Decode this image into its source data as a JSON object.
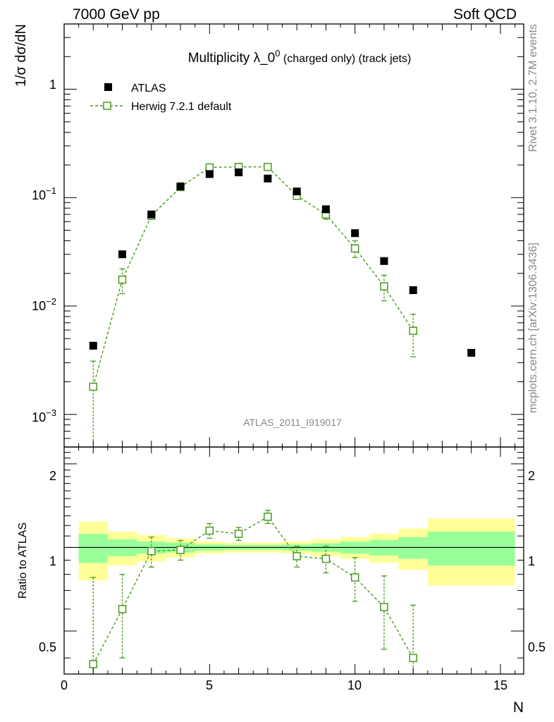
{
  "header": {
    "left": "7000 GeV pp",
    "right": "Soft QCD"
  },
  "side": {
    "rivet": "Rivet 3.1.10,  2.7M events",
    "mcplots": "mcplots.cern.ch [arXiv:1306.3436]"
  },
  "watermark": "ATLAS_2011_I919017",
  "chart_data": {
    "type": "scatter",
    "title_main": "Multiplicity λ_0",
    "title_sup": "0",
    "title_rest": " (charged only) (track jets)",
    "xlabel": "N",
    "ylabel": "1/σ dσ/dN",
    "ratio_ylabel": "Ratio to ATLAS",
    "xlim": [
      0,
      15.8
    ],
    "ylim": [
      0.0005,
      4
    ],
    "yscale": "log",
    "ratio_ylim": [
      0.35,
      2.3
    ],
    "x_ticks": [
      "0",
      "5",
      "10",
      "15"
    ],
    "y_ticks": [
      {
        "base": "10",
        "exp": "−3"
      },
      {
        "base": "10",
        "exp": "−2"
      },
      {
        "base": "10",
        "exp": "−1"
      },
      {
        "base": "1",
        "exp": ""
      }
    ],
    "ratio_ticks": [
      "0.5",
      "1",
      "2"
    ],
    "legend": [
      "ATLAS",
      "Herwig 7.2.1 default"
    ],
    "series": [
      {
        "name": "ATLAS",
        "color": "#000000",
        "marker": "filled-square",
        "x": [
          1,
          2,
          3,
          4,
          5,
          6,
          7,
          8,
          9,
          10,
          11,
          12,
          14
        ],
        "y": [
          0.0043,
          0.03,
          0.07,
          0.127,
          0.165,
          0.171,
          0.15,
          0.114,
          0.078,
          0.047,
          0.026,
          0.014,
          0.0037
        ]
      },
      {
        "name": "Herwig 7.2.1 default",
        "color": "#4a9a1e",
        "marker": "open-square",
        "x": [
          1,
          2,
          3,
          4,
          5,
          6,
          7,
          8,
          9,
          10,
          11,
          12
        ],
        "y": [
          0.0018,
          0.0175,
          0.068,
          0.125,
          0.19,
          0.192,
          0.192,
          0.104,
          0.07,
          0.034,
          0.0152,
          0.0059
        ],
        "yerr": [
          0.0013,
          0.0045,
          0.005,
          0.006,
          0.006,
          0.006,
          0.006,
          0.006,
          0.007,
          0.006,
          0.004,
          0.0025
        ]
      }
    ],
    "ratio": {
      "x": [
        1,
        2,
        3,
        4,
        5,
        6,
        7,
        8,
        9,
        10,
        11,
        12
      ],
      "y": [
        0.38,
        0.6,
        0.97,
        0.98,
        1.15,
        1.12,
        1.29,
        0.93,
        0.91,
        0.78,
        0.61,
        0.4
      ],
      "err": [
        0.4,
        0.2,
        0.12,
        0.08,
        0.07,
        0.06,
        0.07,
        0.08,
        0.1,
        0.14,
        0.18,
        0.22
      ],
      "band_edges": [
        0.5,
        1.5,
        2.5,
        3.5,
        4.5,
        5.5,
        6.5,
        7.5,
        8.5,
        9.5,
        10.5,
        11.5,
        12.5,
        15.5
      ],
      "band_stat": [
        0.12,
        0.07,
        0.05,
        0.04,
        0.025,
        0.02,
        0.02,
        0.025,
        0.035,
        0.05,
        0.065,
        0.09,
        0.14
      ],
      "band_total": [
        0.24,
        0.14,
        0.11,
        0.08,
        0.05,
        0.04,
        0.04,
        0.05,
        0.07,
        0.09,
        0.12,
        0.17,
        0.27
      ]
    }
  }
}
